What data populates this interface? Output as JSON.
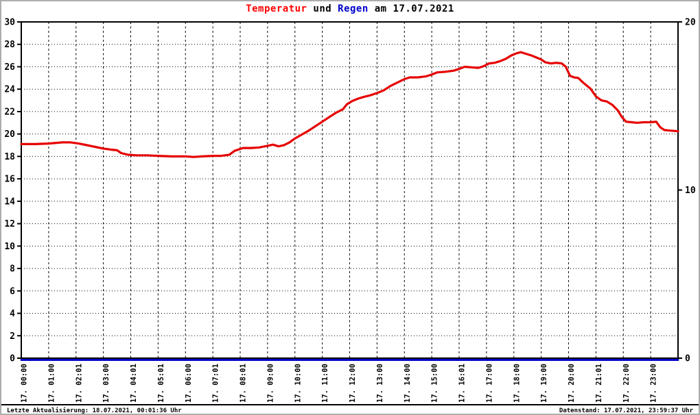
{
  "title": {
    "part1": "Temperatur",
    "part2": " und ",
    "part3": "Regen",
    "part4": " am 17.07.2021"
  },
  "footer": {
    "left": "Letzte Aktualisierung: 18.07.2021, 00:01:36 Uhr",
    "right": "Datenstand: 17.07.2021, 23:59:37 Uhr"
  },
  "colors": {
    "temperature_line": "#e60000",
    "rain_line": "#0000cc",
    "title_red": "#ff0000",
    "title_blue": "#0000cc",
    "grid": "#000000",
    "axis": "#000000",
    "frame": "#adadad"
  },
  "chart_data": {
    "type": "line",
    "title": "Temperatur und Regen am 17.07.2021",
    "grid": true,
    "x_axis": {
      "range": [
        0,
        24
      ],
      "unit": "hour",
      "labels": [
        "17. 00:00",
        "17. 01:00",
        "17. 02:01",
        "17. 03:00",
        "17. 04:01",
        "17. 05:01",
        "17. 06:00",
        "17. 07:01",
        "17. 08:01",
        "17. 09:00",
        "17. 10:00",
        "17. 11:00",
        "17. 12:00",
        "17. 13:00",
        "17. 14:00",
        "17. 15:00",
        "17. 16:01",
        "17. 17:00",
        "17. 18:00",
        "17. 19:00",
        "17. 20:00",
        "17. 21:01",
        "17. 22:00",
        "17. 23:00"
      ]
    },
    "y_left": {
      "range": [
        0,
        30
      ],
      "ticks": [
        0,
        2,
        4,
        6,
        8,
        10,
        12,
        14,
        16,
        18,
        20,
        22,
        24,
        26,
        28,
        30
      ]
    },
    "y_right": {
      "range": [
        0,
        20
      ],
      "ticks": [
        0,
        10,
        20
      ]
    },
    "series": [
      {
        "name": "Temperatur",
        "axis": "left",
        "color": "#e60000",
        "width": 3.2,
        "offset_y": 0,
        "points": [
          [
            0,
            19.1
          ],
          [
            0.5,
            19.1
          ],
          [
            1,
            19.15
          ],
          [
            1.5,
            19.25
          ],
          [
            1.8,
            19.25
          ],
          [
            2.1,
            19.15
          ],
          [
            2.4,
            19.0
          ],
          [
            2.7,
            18.85
          ],
          [
            3,
            18.7
          ],
          [
            3.3,
            18.6
          ],
          [
            3.5,
            18.55
          ],
          [
            3.65,
            18.3
          ],
          [
            3.9,
            18.15
          ],
          [
            4.2,
            18.1
          ],
          [
            4.6,
            18.1
          ],
          [
            5,
            18.05
          ],
          [
            5.5,
            18.0
          ],
          [
            6,
            18.0
          ],
          [
            6.3,
            17.95
          ],
          [
            6.6,
            18.0
          ],
          [
            7,
            18.05
          ],
          [
            7.3,
            18.05
          ],
          [
            7.6,
            18.15
          ],
          [
            7.8,
            18.5
          ],
          [
            8.1,
            18.75
          ],
          [
            8.4,
            18.75
          ],
          [
            8.7,
            18.8
          ],
          [
            9,
            18.95
          ],
          [
            9.2,
            19.05
          ],
          [
            9.4,
            18.9
          ],
          [
            9.6,
            19.0
          ],
          [
            9.8,
            19.25
          ],
          [
            10,
            19.6
          ],
          [
            10.25,
            19.95
          ],
          [
            10.5,
            20.3
          ],
          [
            10.75,
            20.7
          ],
          [
            11,
            21.1
          ],
          [
            11.25,
            21.5
          ],
          [
            11.5,
            21.9
          ],
          [
            11.75,
            22.2
          ],
          [
            11.9,
            22.65
          ],
          [
            12.1,
            22.95
          ],
          [
            12.3,
            23.15
          ],
          [
            12.5,
            23.3
          ],
          [
            12.75,
            23.45
          ],
          [
            13,
            23.65
          ],
          [
            13.25,
            23.9
          ],
          [
            13.5,
            24.3
          ],
          [
            13.75,
            24.6
          ],
          [
            14,
            24.9
          ],
          [
            14.2,
            25.05
          ],
          [
            14.5,
            25.05
          ],
          [
            14.8,
            25.15
          ],
          [
            15,
            25.3
          ],
          [
            15.2,
            25.5
          ],
          [
            15.5,
            25.55
          ],
          [
            15.8,
            25.65
          ],
          [
            16,
            25.8
          ],
          [
            16.2,
            26.0
          ],
          [
            16.45,
            25.95
          ],
          [
            16.7,
            25.9
          ],
          [
            16.9,
            26.05
          ],
          [
            17.1,
            26.3
          ],
          [
            17.3,
            26.35
          ],
          [
            17.5,
            26.5
          ],
          [
            17.7,
            26.7
          ],
          [
            17.9,
            27.0
          ],
          [
            18.1,
            27.2
          ],
          [
            18.25,
            27.3
          ],
          [
            18.45,
            27.15
          ],
          [
            18.65,
            27.0
          ],
          [
            18.85,
            26.8
          ],
          [
            19,
            26.65
          ],
          [
            19.15,
            26.4
          ],
          [
            19.35,
            26.3
          ],
          [
            19.55,
            26.35
          ],
          [
            19.75,
            26.3
          ],
          [
            19.9,
            26.0
          ],
          [
            20.05,
            25.2
          ],
          [
            20.2,
            25.05
          ],
          [
            20.35,
            25.0
          ],
          [
            20.55,
            24.55
          ],
          [
            20.8,
            24.05
          ],
          [
            21,
            23.35
          ],
          [
            21.2,
            23.0
          ],
          [
            21.4,
            22.9
          ],
          [
            21.6,
            22.6
          ],
          [
            21.8,
            22.1
          ],
          [
            21.95,
            21.5
          ],
          [
            22.1,
            21.1
          ],
          [
            22.3,
            21.05
          ],
          [
            22.5,
            21.0
          ],
          [
            22.75,
            21.05
          ],
          [
            23,
            21.05
          ],
          [
            23.2,
            21.1
          ],
          [
            23.35,
            20.6
          ],
          [
            23.5,
            20.35
          ],
          [
            23.75,
            20.3
          ],
          [
            24,
            20.25
          ]
        ]
      },
      {
        "name": "Regen",
        "axis": "right",
        "color": "#0000cc",
        "width": 3,
        "offset_y": 2.5,
        "points": [
          [
            0,
            0
          ],
          [
            24,
            0
          ]
        ]
      }
    ]
  }
}
